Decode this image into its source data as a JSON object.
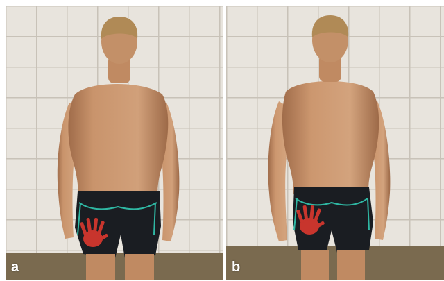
{
  "panels": [
    {
      "label": "a"
    },
    {
      "label": "b"
    }
  ],
  "colors": {
    "background": "#ffffff",
    "tile": "#e8e4dd",
    "grout": "#c8c2b8",
    "floor": "#7a6a4f",
    "skin": "#c9946c",
    "skin_shadow": "#a06c4a",
    "hair": "#b08a56",
    "shorts": "#1a1d22",
    "handprint": "#c8352d",
    "stripe": "#2fb7a3",
    "label": "#ffffff"
  }
}
